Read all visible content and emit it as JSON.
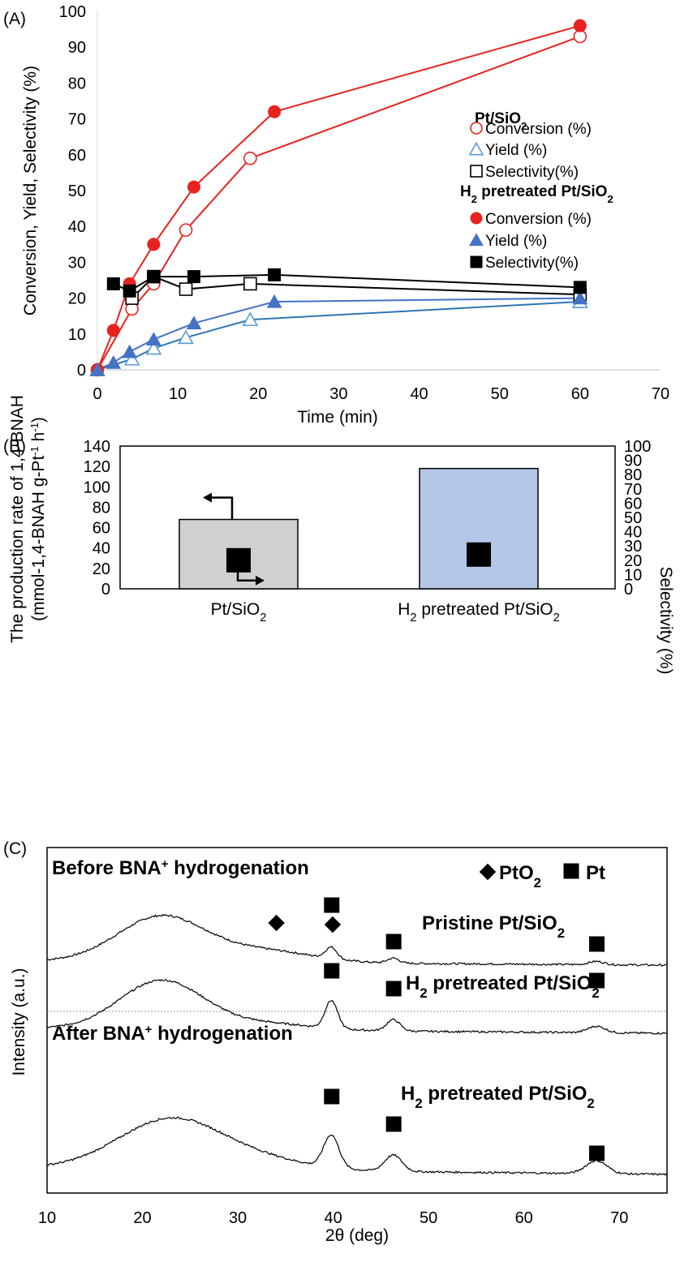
{
  "chart_data": [
    {
      "panel": "(A)",
      "type": "line",
      "xlabel": "Time (min)",
      "ylabel": "Conversion, Yield, Selectivity (%)",
      "xlim": [
        0,
        70
      ],
      "ylim": [
        0,
        100
      ],
      "xticks": [
        0,
        10,
        20,
        30,
        40,
        50,
        60,
        70
      ],
      "yticks": [
        0,
        10,
        20,
        30,
        40,
        50,
        60,
        70,
        80,
        90,
        100
      ],
      "legend_position": "right",
      "legend_groups": [
        {
          "title": "Pt/SiO",
          "sub": "2",
          "title_suffix": ""
        },
        {
          "title": "H",
          "sub": "2",
          "title_suffix": " pretreated Pt/SiO",
          "sub2": "2"
        }
      ],
      "series": [
        {
          "name": "Conversion (%)",
          "group": 0,
          "marker": "circle",
          "filled": false,
          "color": "#e8231f",
          "x": [
            0,
            4.3,
            7,
            11,
            19,
            60
          ],
          "y": [
            0,
            17,
            24,
            39,
            59,
            93
          ]
        },
        {
          "name": "Yield (%)",
          "group": 0,
          "marker": "triangle",
          "filled": false,
          "color": "#5b9bd5",
          "line_color": "#2e75b6",
          "x": [
            0,
            4.3,
            7,
            11,
            19,
            60
          ],
          "y": [
            0,
            3,
            6,
            9,
            14,
            19
          ]
        },
        {
          "name": "Selectivity(%)",
          "group": 0,
          "marker": "square",
          "filled": false,
          "color": "#000000",
          "x": [
            4.3,
            7,
            11,
            19,
            60
          ],
          "y": [
            20,
            26,
            22.5,
            24,
            21
          ]
        },
        {
          "name": "Conversion (%)",
          "group": 1,
          "marker": "circle",
          "filled": true,
          "color": "#e8231f",
          "x": [
            0,
            2,
            4,
            7,
            12,
            22,
            60
          ],
          "y": [
            0,
            11,
            24,
            35,
            51,
            72,
            96
          ]
        },
        {
          "name": "Yield (%)",
          "group": 1,
          "marker": "triangle",
          "filled": true,
          "color": "#4472c4",
          "line_color": "#4472c4",
          "x": [
            0,
            2,
            4,
            7,
            12,
            22,
            60
          ],
          "y": [
            0,
            2,
            5,
            8.5,
            13,
            19,
            20
          ]
        },
        {
          "name": "Selectivity(%)",
          "group": 1,
          "marker": "square",
          "filled": true,
          "color": "#000000",
          "x": [
            2,
            4,
            7,
            12,
            22,
            60
          ],
          "y": [
            24,
            22,
            26,
            26,
            26.5,
            23
          ]
        }
      ]
    },
    {
      "panel": "(B)",
      "type": "bar",
      "categories": [
        "Pt/SiO",
        "H"
      ],
      "category_labels": [
        {
          "parts": [
            {
              "t": "Pt/SiO"
            },
            {
              "t": "2",
              "sub": true
            }
          ]
        },
        {
          "parts": [
            {
              "t": "H"
            },
            {
              "t": "2",
              "sub": true
            },
            {
              "t": " pretreated Pt/SiO"
            },
            {
              "t": "2",
              "sub": true
            }
          ]
        }
      ],
      "ylabel_line1": "The production rate of 1,4-BNAH",
      "ylabel_line2": "(mmol-1,4-BNAH g-Pt",
      "ylabel_line2_sup": "-1",
      "ylabel_line2_mid": " h",
      "ylabel_line2_sup2": "-1",
      "ylabel_line2_end": ")",
      "ylabel_right": "Selectivity  (%)",
      "ylim": [
        0,
        140
      ],
      "yticks": [
        0,
        20,
        40,
        60,
        80,
        100,
        120,
        140
      ],
      "ylim_right": [
        0,
        100
      ],
      "yticks_right": [
        0,
        10,
        20,
        30,
        40,
        50,
        60,
        70,
        80,
        90,
        100
      ],
      "bar_values": [
        68,
        118
      ],
      "bar_colors": [
        "#d0d0d0",
        "#b4c7e7"
      ],
      "selectivity_values": [
        20,
        24
      ]
    },
    {
      "panel": "(C)",
      "type": "line",
      "xlabel": "2θ (deg)",
      "ylabel": "Intensity (a.u.)",
      "xlim": [
        10,
        75
      ],
      "xticks": [
        10,
        20,
        30,
        40,
        50,
        60,
        70
      ],
      "header_before": "Before BNA",
      "header_before_sup": "+",
      "header_before_end": " hydrogenation",
      "header_after": "After BNA",
      "header_after_sup": "+",
      "header_after_end": " hydrogenation",
      "legend": [
        {
          "marker": "diamond",
          "label": "PtO",
          "sub": "2"
        },
        {
          "marker": "square",
          "label": "Pt"
        }
      ],
      "series": [
        {
          "name_parts": [
            {
              "t": "Pristine Pt/SiO"
            },
            {
              "t": "2",
              "sub": true
            }
          ],
          "pt_peaks": [
            39.8,
            46.3,
            67.6
          ],
          "pto2_peaks": [
            34,
            39.9
          ]
        },
        {
          "name_parts": [
            {
              "t": "H"
            },
            {
              "t": "2",
              "sub": true
            },
            {
              "t": " pretreated Pt/SiO"
            },
            {
              "t": "2",
              "sub": true
            }
          ],
          "pt_peaks": [
            39.8,
            46.3,
            67.6
          ],
          "pto2_peaks": []
        },
        {
          "name_parts": [
            {
              "t": "H"
            },
            {
              "t": "2",
              "sub": true
            },
            {
              "t": " pretreated Pt/SiO"
            },
            {
              "t": "2",
              "sub": true
            }
          ],
          "pt_peaks": [
            39.8,
            46.3,
            67.6
          ],
          "pto2_peaks": []
        }
      ]
    }
  ]
}
